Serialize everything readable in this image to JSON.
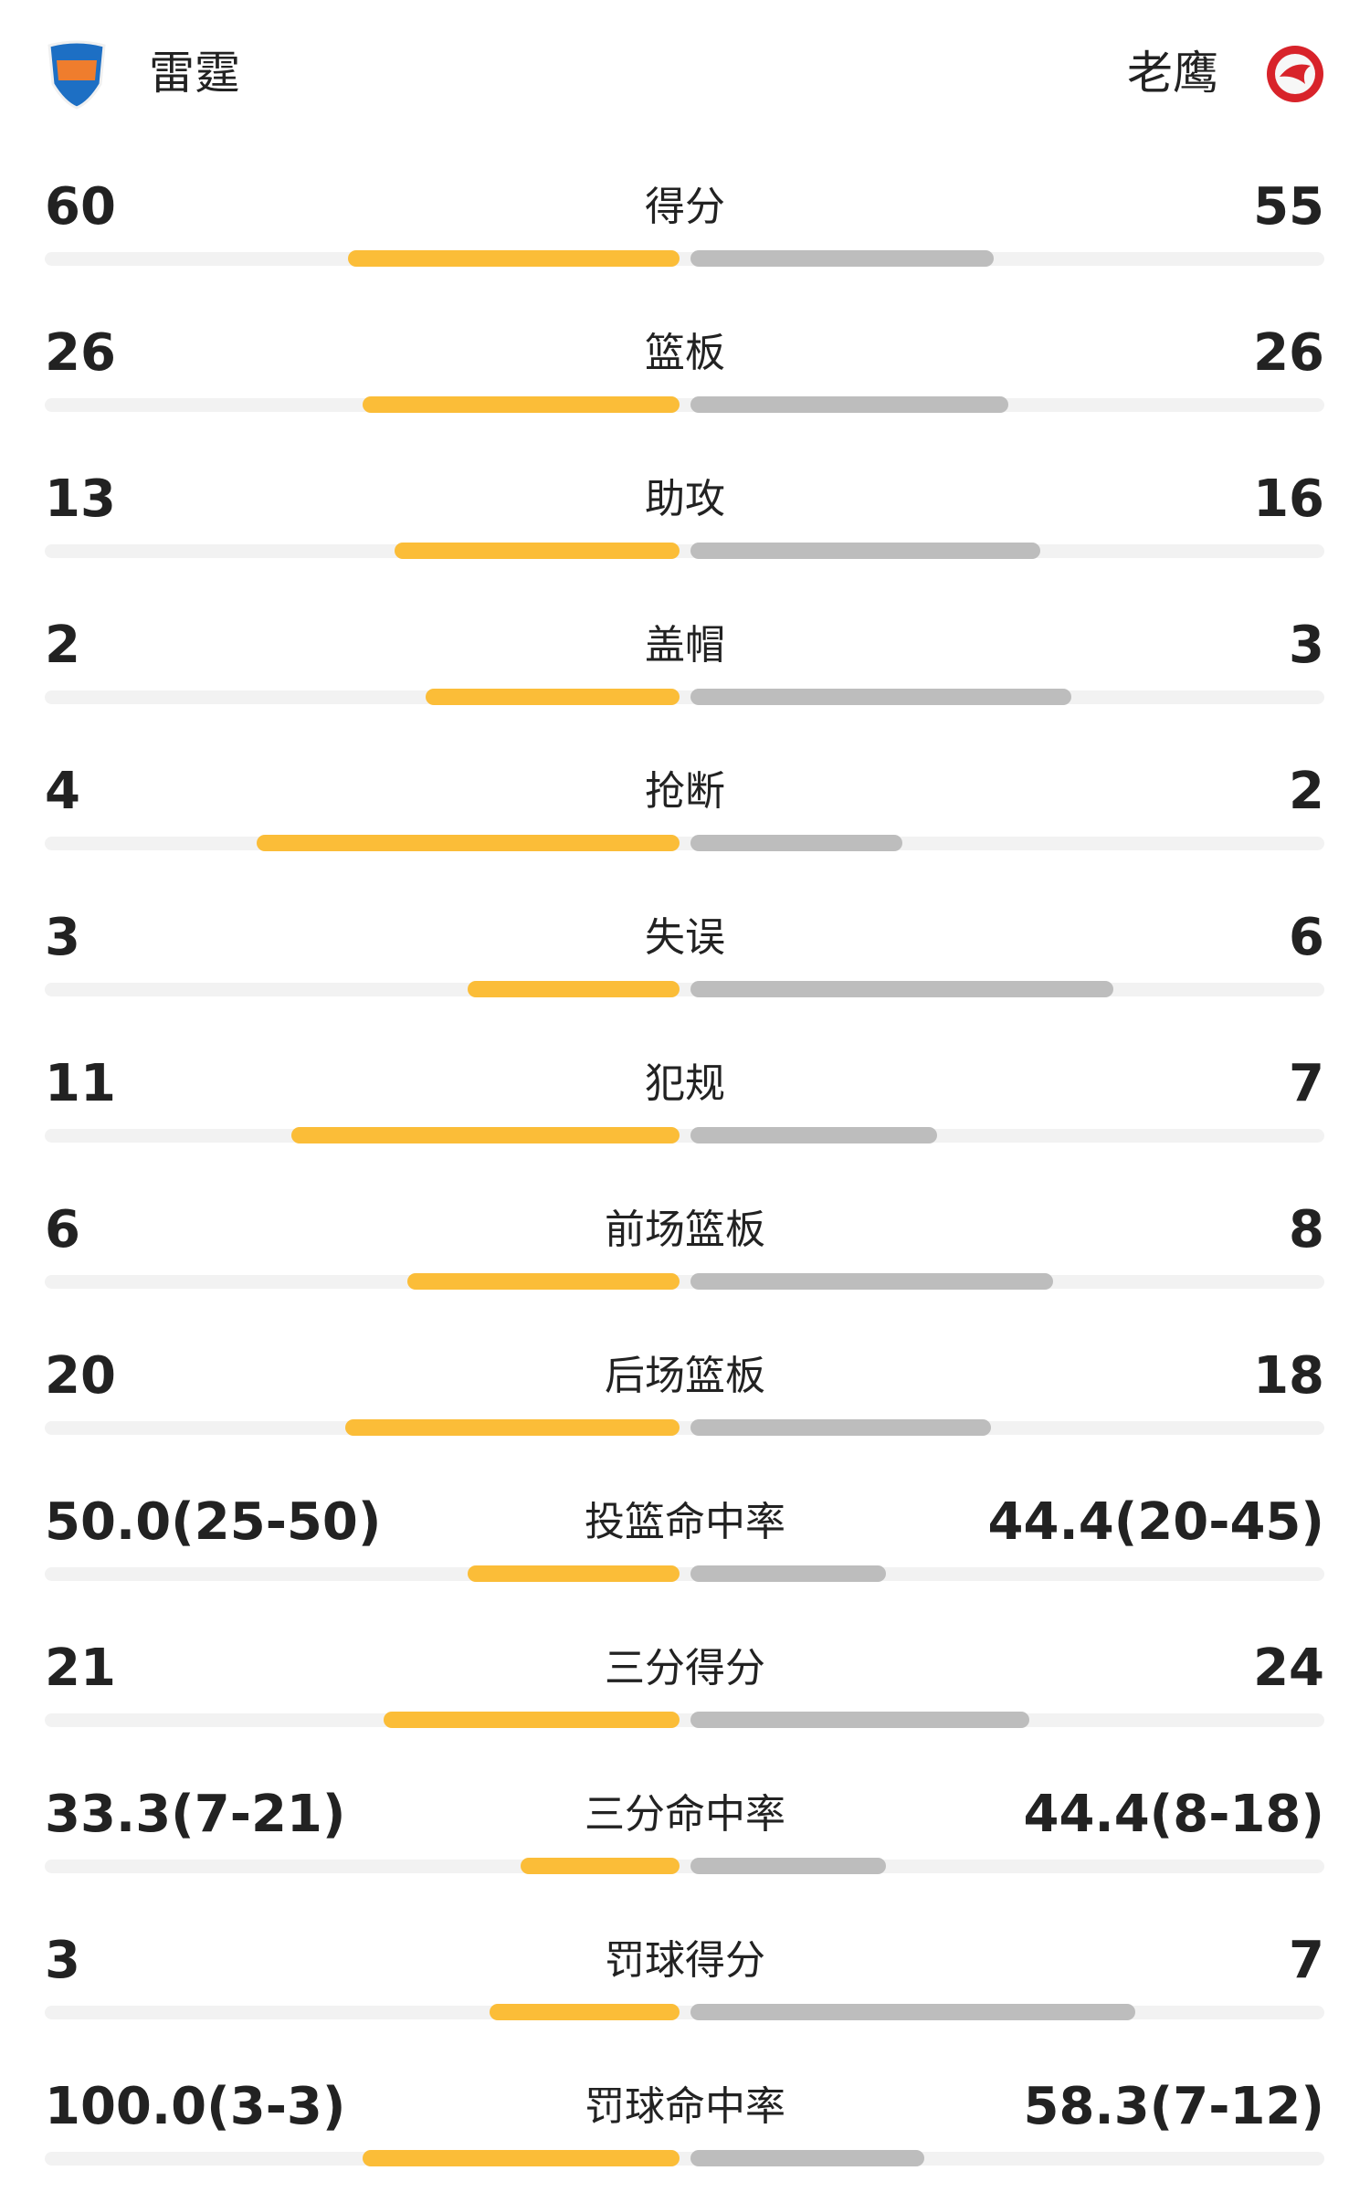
{
  "header": {
    "home": {
      "name": "雷霆"
    },
    "away": {
      "name": "老鹰"
    }
  },
  "stats": [
    {
      "label": "得分",
      "home": 60,
      "away": 55
    },
    {
      "label": "篮板",
      "home": 26,
      "away": 26
    },
    {
      "label": "助攻",
      "home": 13,
      "away": 16
    },
    {
      "label": "盖帽",
      "home": 2,
      "away": 3
    },
    {
      "label": "抢断",
      "home": 4,
      "away": 2
    },
    {
      "label": "失误",
      "home": 3,
      "away": 6
    },
    {
      "label": "犯规",
      "home": 11,
      "away": 7
    },
    {
      "label": "前场篮板",
      "home": 6,
      "away": 8
    },
    {
      "label": "后场篮板",
      "home": 20,
      "away": 18
    },
    {
      "label": "投篮命中率",
      "home": {
        "value": 50.0,
        "made": 25,
        "attempts": 50,
        "label": "50.0(25-50)"
      },
      "away": {
        "value": 44.4,
        "made": 20,
        "attempts": 45,
        "label": "44.4(20-45)"
      }
    },
    {
      "label": "三分得分",
      "home": 21,
      "away": 24
    },
    {
      "label": "三分命中率",
      "home": {
        "value": 33.3,
        "made": 7,
        "attempts": 21,
        "label": "33.3(7-21)"
      },
      "away": {
        "value": 44.4,
        "made": 8,
        "attempts": 18,
        "label": "44.4(8-18)"
      }
    },
    {
      "label": "罚球得分",
      "home": 3,
      "away": 7
    },
    {
      "label": "罚球命中率",
      "home": {
        "value": 100.0,
        "made": 3,
        "attempts": 3,
        "label": "100.0(3-3)"
      },
      "away": {
        "value": 58.3,
        "made": 7,
        "attempts": 12,
        "label": "58.3(7-12)"
      }
    }
  ]
}
